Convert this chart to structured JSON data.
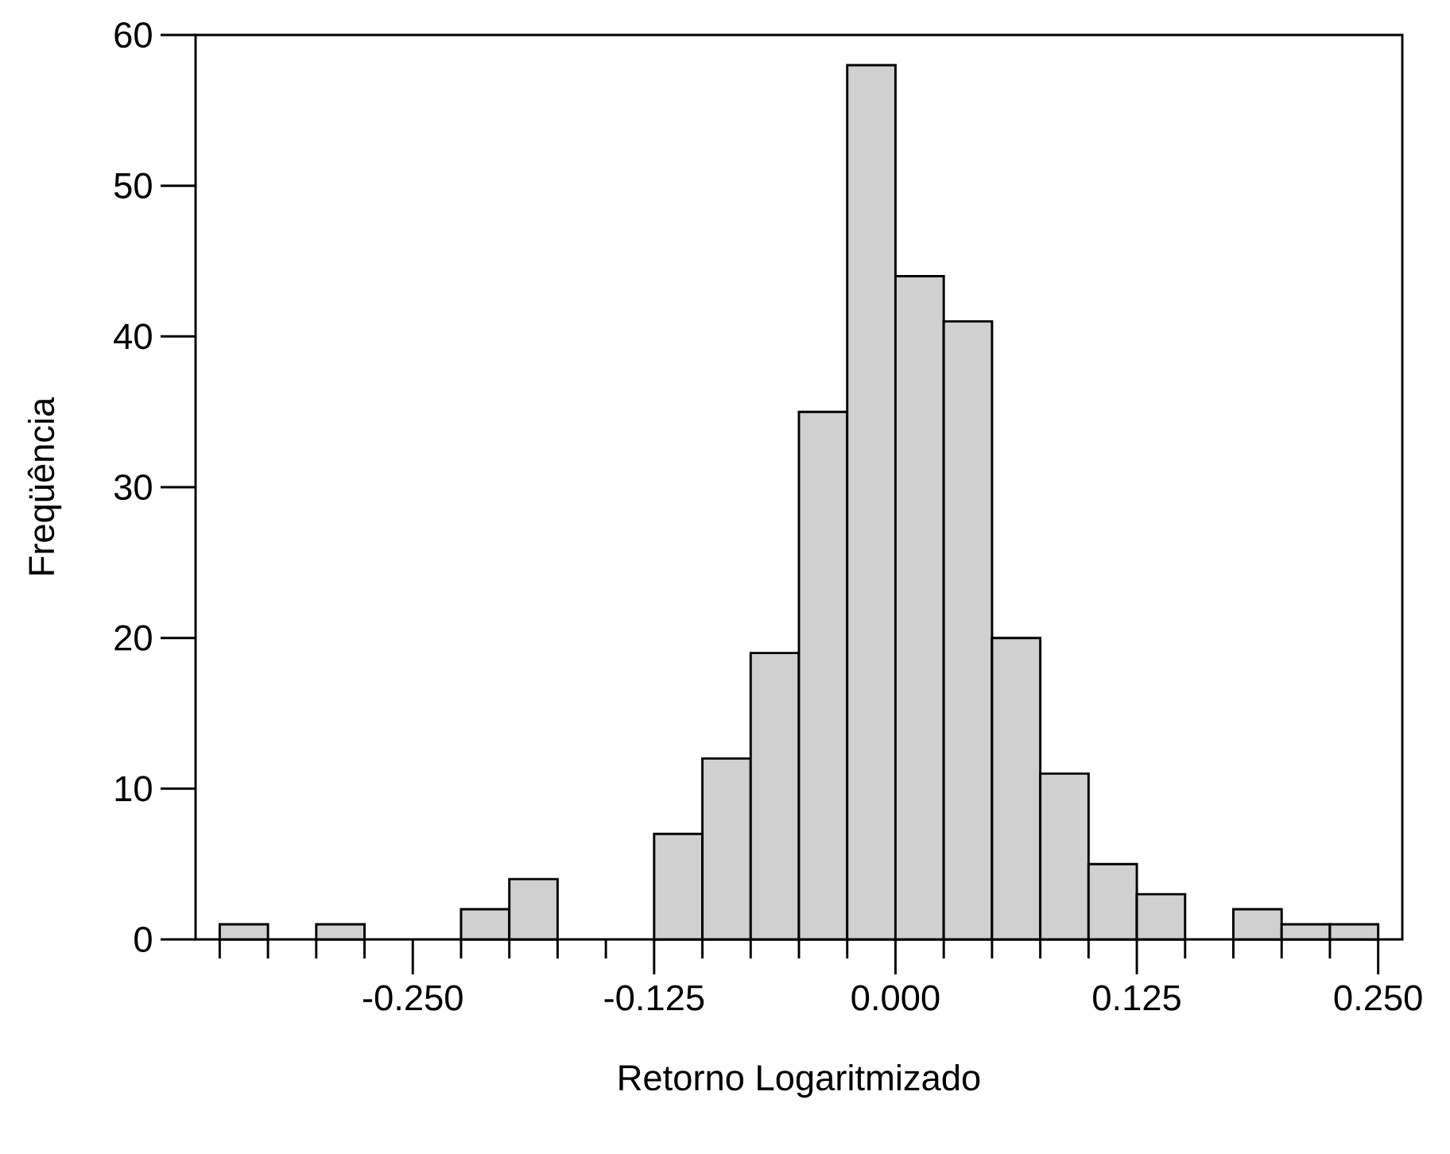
{
  "chart_data": {
    "type": "histogram",
    "xlabel": "Retorno Logaritmizado",
    "ylabel": "Freqüência",
    "bins": [
      -0.35,
      -0.325,
      -0.3,
      -0.275,
      -0.25,
      -0.225,
      -0.2,
      -0.175,
      -0.15,
      -0.125,
      -0.1,
      -0.075,
      -0.05,
      -0.025,
      0,
      0.025,
      0.05,
      0.075,
      0.1,
      0.125,
      0.15,
      0.175,
      0.2,
      0.225,
      0.25
    ],
    "values": [
      1,
      0,
      1,
      0,
      0,
      2,
      4,
      0,
      0,
      7,
      12,
      19,
      35,
      58,
      44,
      41,
      20,
      11,
      5,
      3,
      0,
      2,
      1,
      1
    ],
    "color": "#d0d0d0",
    "xlim": [
      -0.3625,
      0.2625
    ],
    "ylim": [
      0,
      60
    ],
    "xticks": [
      {
        "value": -0.35,
        "label": null
      },
      {
        "value": -0.325,
        "label": null
      },
      {
        "value": -0.3,
        "label": null
      },
      {
        "value": -0.275,
        "label": null
      },
      {
        "value": -0.25,
        "label": "-0.250"
      },
      {
        "value": -0.225,
        "label": null
      },
      {
        "value": -0.2,
        "label": null
      },
      {
        "value": -0.175,
        "label": null
      },
      {
        "value": -0.15,
        "label": null
      },
      {
        "value": -0.125,
        "label": "-0.125"
      },
      {
        "value": -0.1,
        "label": null
      },
      {
        "value": -0.075,
        "label": null
      },
      {
        "value": -0.05,
        "label": null
      },
      {
        "value": -0.025,
        "label": null
      },
      {
        "value": 0,
        "label": "0.000"
      },
      {
        "value": 0.025,
        "label": null
      },
      {
        "value": 0.05,
        "label": null
      },
      {
        "value": 0.075,
        "label": null
      },
      {
        "value": 0.1,
        "label": null
      },
      {
        "value": 0.125,
        "label": "0.125"
      },
      {
        "value": 0.15,
        "label": null
      },
      {
        "value": 0.175,
        "label": null
      },
      {
        "value": 0.2,
        "label": null
      },
      {
        "value": 0.225,
        "label": null
      },
      {
        "value": 0.25,
        "label": "0.250"
      }
    ],
    "yticks": [
      0,
      10,
      20,
      30,
      40,
      50,
      60
    ]
  }
}
